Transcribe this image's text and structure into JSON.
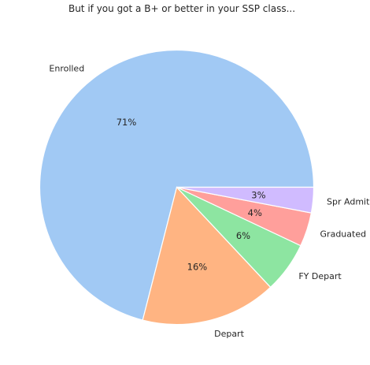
{
  "chart_data": {
    "type": "pie",
    "title": "But if you got a B+ or better in your SSP class...",
    "start_angle_deg": 0,
    "direction": "counterclockwise",
    "slices": [
      {
        "label": "Enrolled",
        "value": 71,
        "pct_label": "71%",
        "color": "#a1c9f4"
      },
      {
        "label": "Depart",
        "value": 16,
        "pct_label": "16%",
        "color": "#ffb482"
      },
      {
        "label": "FY Depart",
        "value": 6,
        "pct_label": "6%",
        "color": "#8de5a1"
      },
      {
        "label": "Graduated",
        "value": 4,
        "pct_label": "4%",
        "color": "#ff9f9b"
      },
      {
        "label": "Spr Admit",
        "value": 3,
        "pct_label": "3%",
        "color": "#d0bbff"
      }
    ],
    "legend": "none"
  }
}
